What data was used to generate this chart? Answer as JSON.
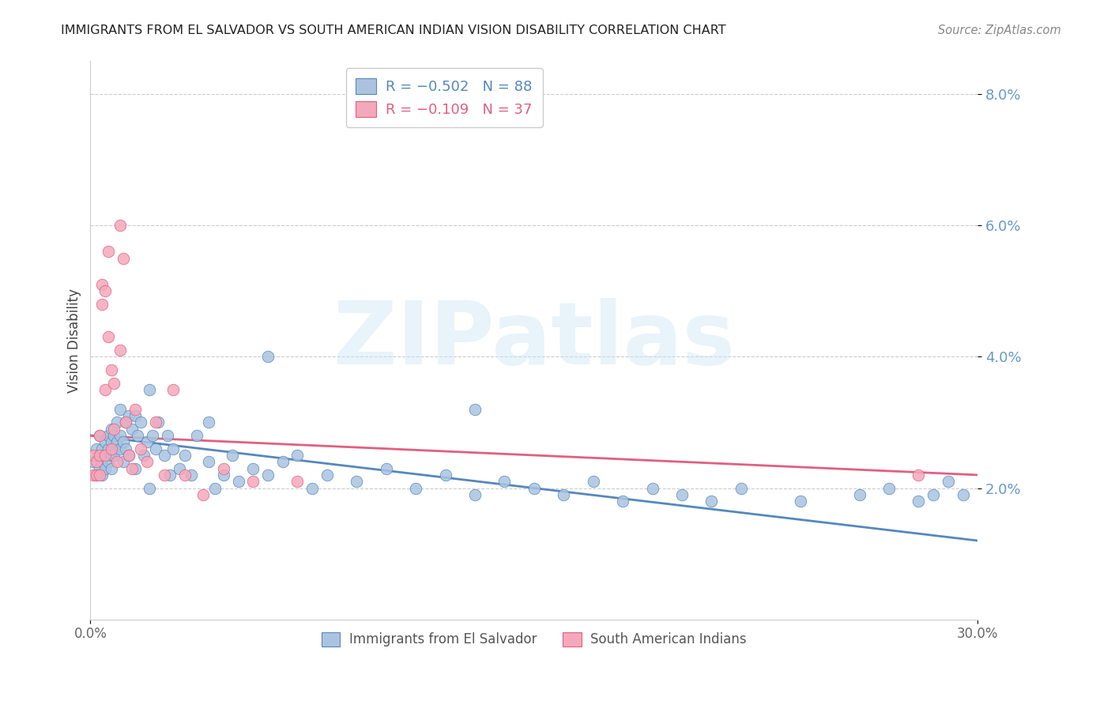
{
  "title": "IMMIGRANTS FROM EL SALVADOR VS SOUTH AMERICAN INDIAN VISION DISABILITY CORRELATION CHART",
  "source": "Source: ZipAtlas.com",
  "ylabel": "Vision Disability",
  "xlim": [
    0.0,
    0.3
  ],
  "ylim": [
    0.0,
    0.085
  ],
  "yticks": [
    0.02,
    0.04,
    0.06,
    0.08
  ],
  "ytick_labels": [
    "2.0%",
    "4.0%",
    "6.0%",
    "8.0%"
  ],
  "xtick_vals": [
    0.0,
    0.3
  ],
  "xtick_labels": [
    "0.0%",
    "30.0%"
  ],
  "blue_R": -0.502,
  "blue_N": 88,
  "pink_R": -0.109,
  "pink_N": 37,
  "blue_color": "#aac4e0",
  "pink_color": "#f4a8bb",
  "blue_line_color": "#5588bb",
  "pink_line_color": "#e06080",
  "legend_label_blue": "Immigrants from El Salvador",
  "legend_label_pink": "South American Indians",
  "watermark": "ZIPatlas",
  "blue_legend_text": "R = −0.502   N = 88",
  "pink_legend_text": "R = −0.109   N = 37",
  "grid_color": "#cccccc",
  "tick_color": "#6699cc",
  "blue_x": [
    0.001,
    0.002,
    0.002,
    0.003,
    0.003,
    0.003,
    0.004,
    0.004,
    0.004,
    0.005,
    0.005,
    0.005,
    0.006,
    0.006,
    0.006,
    0.007,
    0.007,
    0.007,
    0.007,
    0.008,
    0.008,
    0.008,
    0.009,
    0.009,
    0.01,
    0.01,
    0.01,
    0.011,
    0.011,
    0.012,
    0.012,
    0.013,
    0.013,
    0.014,
    0.015,
    0.015,
    0.016,
    0.017,
    0.018,
    0.019,
    0.02,
    0.021,
    0.022,
    0.023,
    0.025,
    0.026,
    0.027,
    0.028,
    0.03,
    0.032,
    0.034,
    0.036,
    0.04,
    0.042,
    0.045,
    0.048,
    0.05,
    0.055,
    0.06,
    0.065,
    0.07,
    0.075,
    0.08,
    0.09,
    0.1,
    0.11,
    0.12,
    0.13,
    0.14,
    0.15,
    0.16,
    0.17,
    0.18,
    0.19,
    0.2,
    0.21,
    0.22,
    0.24,
    0.26,
    0.27,
    0.28,
    0.285,
    0.29,
    0.295,
    0.13,
    0.06,
    0.04,
    0.02
  ],
  "blue_y": [
    0.024,
    0.022,
    0.026,
    0.023,
    0.025,
    0.028,
    0.022,
    0.026,
    0.024,
    0.025,
    0.023,
    0.027,
    0.026,
    0.028,
    0.024,
    0.027,
    0.025,
    0.023,
    0.029,
    0.026,
    0.028,
    0.025,
    0.027,
    0.03,
    0.028,
    0.026,
    0.032,
    0.027,
    0.024,
    0.03,
    0.026,
    0.031,
    0.025,
    0.029,
    0.031,
    0.023,
    0.028,
    0.03,
    0.025,
    0.027,
    0.035,
    0.028,
    0.026,
    0.03,
    0.025,
    0.028,
    0.022,
    0.026,
    0.023,
    0.025,
    0.022,
    0.028,
    0.024,
    0.02,
    0.022,
    0.025,
    0.021,
    0.023,
    0.022,
    0.024,
    0.025,
    0.02,
    0.022,
    0.021,
    0.023,
    0.02,
    0.022,
    0.019,
    0.021,
    0.02,
    0.019,
    0.021,
    0.018,
    0.02,
    0.019,
    0.018,
    0.02,
    0.018,
    0.019,
    0.02,
    0.018,
    0.019,
    0.021,
    0.019,
    0.032,
    0.04,
    0.03,
    0.02
  ],
  "pink_x": [
    0.001,
    0.001,
    0.002,
    0.002,
    0.003,
    0.003,
    0.003,
    0.004,
    0.004,
    0.005,
    0.005,
    0.005,
    0.006,
    0.006,
    0.007,
    0.007,
    0.008,
    0.008,
    0.009,
    0.01,
    0.01,
    0.011,
    0.012,
    0.013,
    0.014,
    0.015,
    0.017,
    0.019,
    0.022,
    0.025,
    0.028,
    0.032,
    0.038,
    0.045,
    0.055,
    0.07,
    0.28
  ],
  "pink_y": [
    0.022,
    0.025,
    0.024,
    0.022,
    0.025,
    0.028,
    0.022,
    0.051,
    0.048,
    0.035,
    0.05,
    0.025,
    0.043,
    0.056,
    0.038,
    0.026,
    0.036,
    0.029,
    0.024,
    0.041,
    0.06,
    0.055,
    0.03,
    0.025,
    0.023,
    0.032,
    0.026,
    0.024,
    0.03,
    0.022,
    0.035,
    0.022,
    0.019,
    0.023,
    0.021,
    0.021,
    0.022
  ]
}
